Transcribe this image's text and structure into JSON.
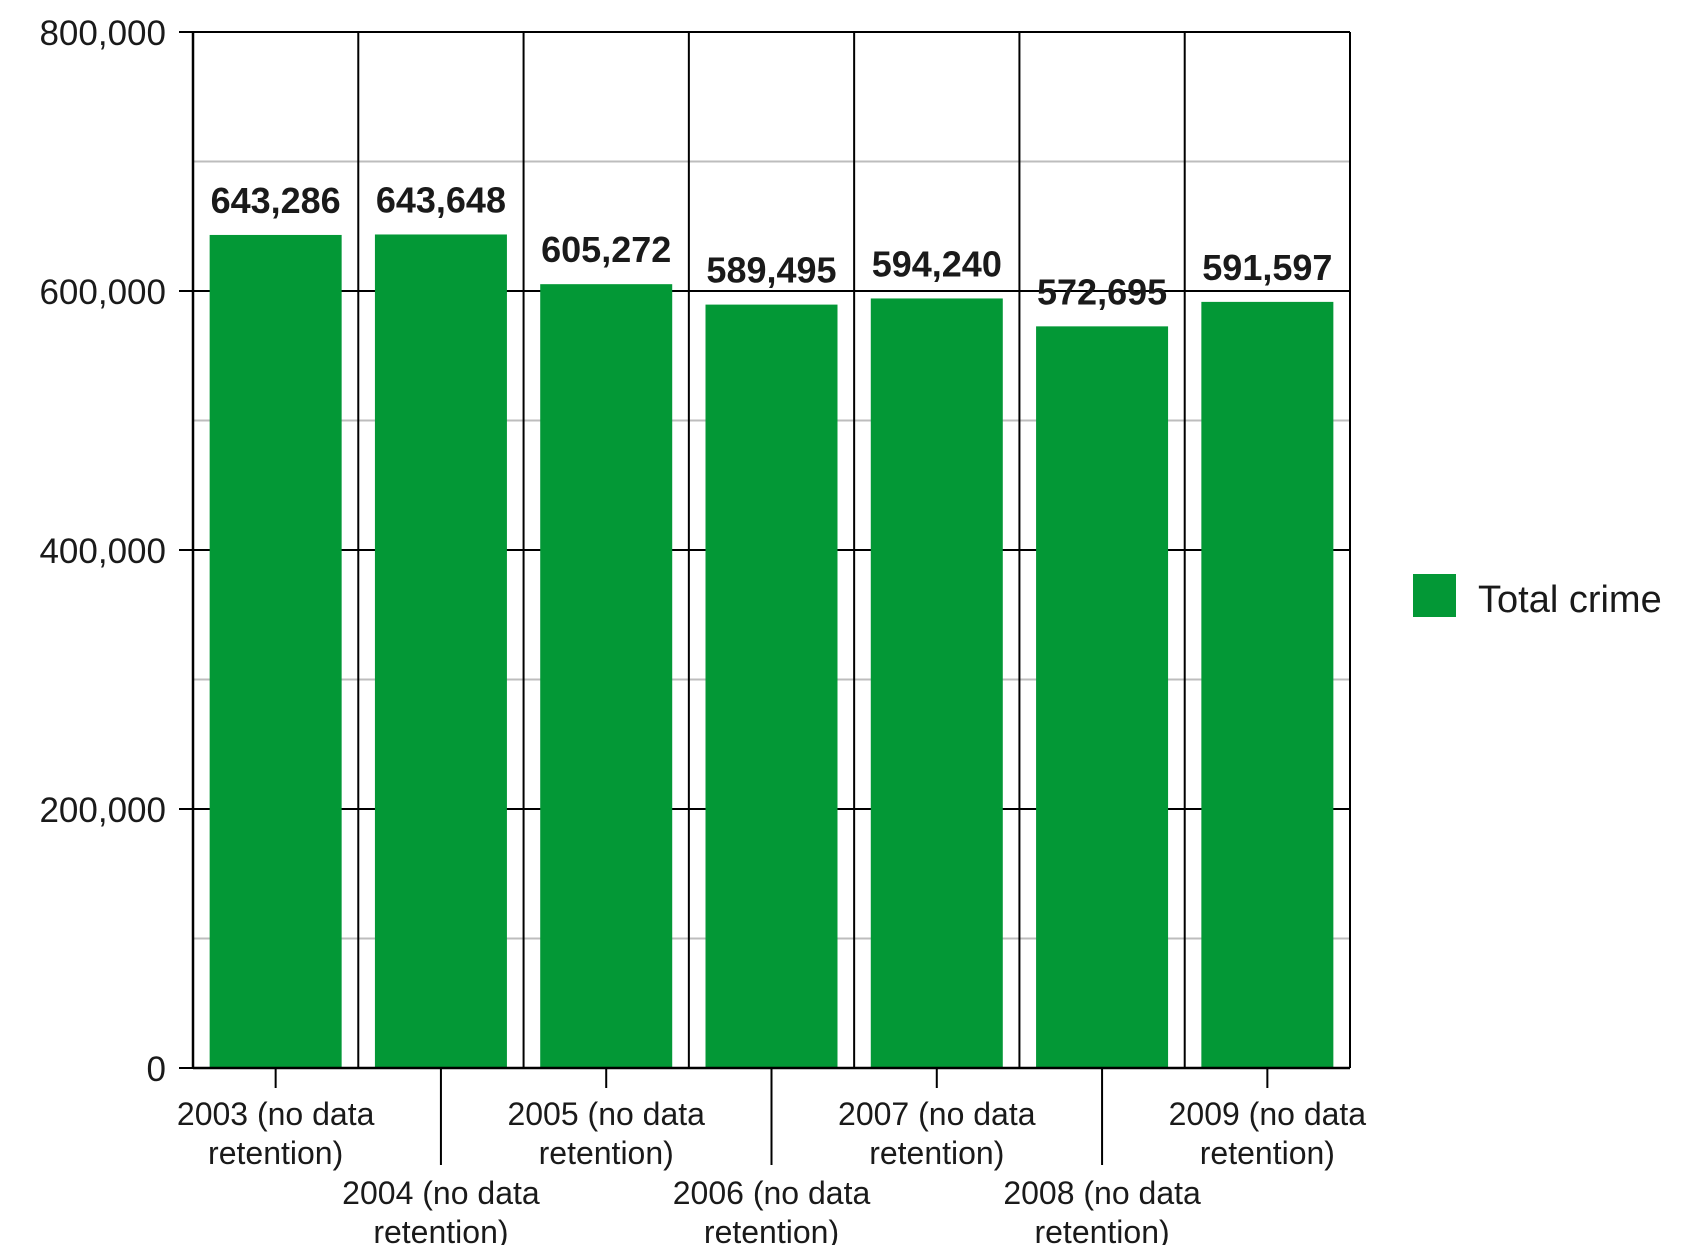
{
  "colors": {
    "bar": "#039836",
    "grid_major": "#000000",
    "grid_minor": "#bdbdbd",
    "axis": "#000000"
  },
  "chart_data": {
    "type": "bar",
    "categories": [
      [
        "2003 (no data",
        "retention)"
      ],
      [
        "2004 (no data",
        "retention)"
      ],
      [
        "2005 (no data",
        "retention)"
      ],
      [
        "2006 (no data",
        "retention)"
      ],
      [
        "2007 (no data",
        "retention)"
      ],
      [
        "2008 (no data",
        "retention)"
      ],
      [
        "2009 (no data",
        "retention)"
      ]
    ],
    "series": [
      {
        "name": "Total crime",
        "values": [
          643286,
          643648,
          605272,
          589495,
          594240,
          572695,
          591597
        ]
      }
    ],
    "data_labels": [
      "643,286",
      "643,648",
      "605,272",
      "589,495",
      "594,240",
      "572,695",
      "591,597"
    ],
    "ylim": [
      0,
      800000
    ],
    "yticks": [
      0,
      200000,
      400000,
      600000,
      800000
    ],
    "ytick_labels": [
      "0",
      "200,000",
      "400,000",
      "600,000",
      "800,000"
    ],
    "minor_gridlines": [
      100000,
      300000,
      500000,
      700000
    ],
    "grid": true,
    "legend_position": "right"
  }
}
